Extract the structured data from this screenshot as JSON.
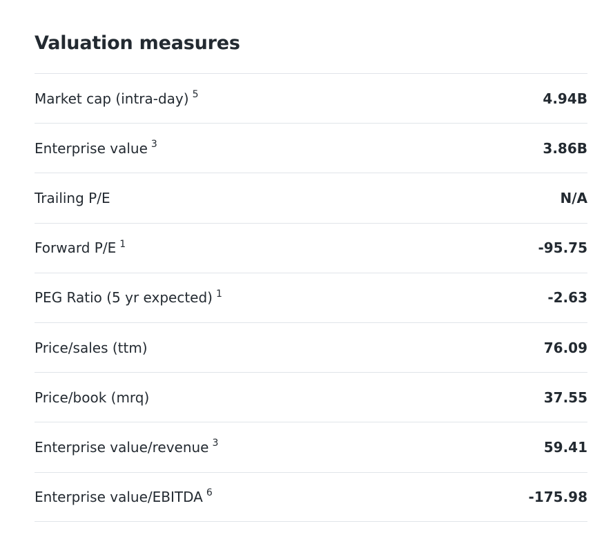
{
  "section": {
    "title": "Valuation measures"
  },
  "table": {
    "rows": [
      {
        "label": "Market cap (intra-day)",
        "footnote": "5",
        "value": "4.94B"
      },
      {
        "label": "Enterprise value",
        "footnote": "3",
        "value": "3.86B"
      },
      {
        "label": "Trailing P/E",
        "footnote": "",
        "value": "N/A"
      },
      {
        "label": "Forward P/E",
        "footnote": "1",
        "value": "-95.75"
      },
      {
        "label": "PEG Ratio (5 yr expected)",
        "footnote": "1",
        "value": "-2.63"
      },
      {
        "label": "Price/sales (ttm)",
        "footnote": "",
        "value": "76.09"
      },
      {
        "label": "Price/book (mrq)",
        "footnote": "",
        "value": "37.55"
      },
      {
        "label": "Enterprise value/revenue",
        "footnote": "3",
        "value": "59.41"
      },
      {
        "label": "Enterprise value/EBITDA",
        "footnote": "6",
        "value": "-175.98"
      }
    ]
  },
  "colors": {
    "text": "#232a31",
    "divider": "#e0e4e9"
  }
}
